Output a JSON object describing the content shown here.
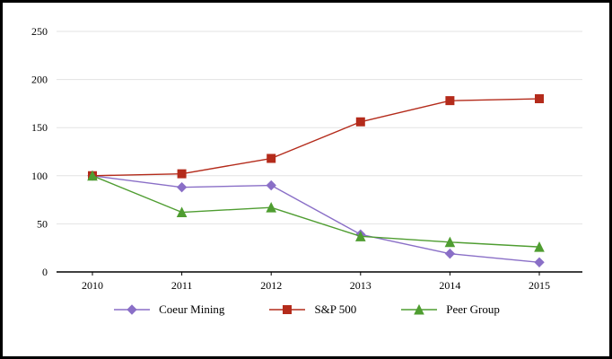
{
  "chart_data": {
    "type": "line",
    "title": "",
    "xlabel": "",
    "ylabel": "",
    "categories": [
      "2010",
      "2011",
      "2012",
      "2013",
      "2014",
      "2015"
    ],
    "series": [
      {
        "name": "Coeur Mining",
        "values": [
          100,
          88,
          90,
          39,
          19,
          10
        ],
        "color": "#8a6fc7",
        "marker": "diamond"
      },
      {
        "name": "S&P 500",
        "values": [
          100,
          102,
          118,
          156,
          178,
          180
        ],
        "color": "#b42b1b",
        "marker": "square"
      },
      {
        "name": "Peer Group",
        "values": [
          100,
          62,
          67,
          37,
          31,
          26
        ],
        "color": "#4f9d31",
        "marker": "triangle"
      }
    ],
    "ylim": [
      0,
      250
    ],
    "yticks": [
      0,
      50,
      100,
      150,
      200,
      250
    ],
    "grid": "horizontal",
    "gridline_color": "#e3e3e3",
    "axis_color": "#000000",
    "legend_position": "bottom"
  }
}
